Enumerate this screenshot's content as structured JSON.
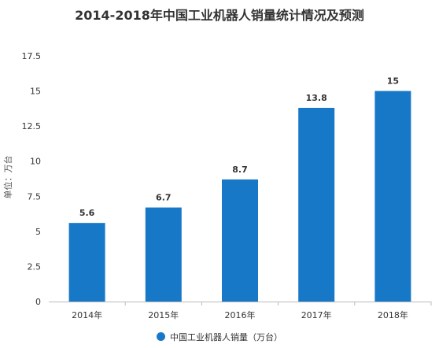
{
  "chart_data": {
    "type": "bar",
    "title": "2014-2018年中国工业机器人销量统计情况及预测",
    "ylabel": "单位：万台",
    "xlabel": "",
    "categories": [
      "2014年",
      "2015年",
      "2016年",
      "2017年",
      "2018年"
    ],
    "series": [
      {
        "name": "中国工业机器人销量（万台）",
        "values": [
          5.6,
          6.7,
          8.7,
          13.8,
          15
        ],
        "color": "#1878c8"
      }
    ],
    "data_labels": [
      "5.6",
      "6.7",
      "8.7",
      "13.8",
      "15"
    ],
    "ylim": [
      0,
      17.5
    ],
    "yticks": [
      0,
      2.5,
      5,
      7.5,
      10,
      12.5,
      15,
      17.5
    ],
    "ytick_labels": [
      "0",
      "2.5",
      "5",
      "7.5",
      "10",
      "12.5",
      "15",
      "17.5"
    ],
    "grid": false,
    "legend_position": "bottom"
  }
}
